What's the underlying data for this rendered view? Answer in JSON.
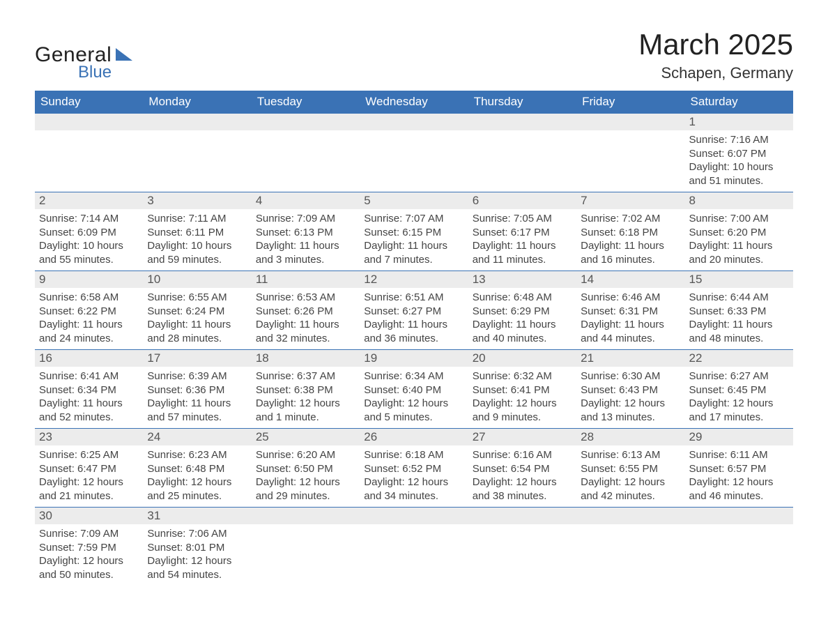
{
  "logo": {
    "word1": "General",
    "word2": "Blue"
  },
  "title": "March 2025",
  "location": "Schapen, Germany",
  "colors": {
    "header_bg": "#3a72b5",
    "header_text": "#ffffff",
    "daynum_bg": "#ececec",
    "row_border": "#3a72b5",
    "text": "#333333",
    "logo_accent": "#3a72b5"
  },
  "fonts": {
    "title_size_pt": 32,
    "location_size_pt": 17,
    "header_size_pt": 13,
    "body_size_pt": 11
  },
  "weekdays": [
    "Sunday",
    "Monday",
    "Tuesday",
    "Wednesday",
    "Thursday",
    "Friday",
    "Saturday"
  ],
  "labels": {
    "sunrise": "Sunrise:",
    "sunset": "Sunset:",
    "daylight": "Daylight:"
  },
  "weeks": [
    [
      null,
      null,
      null,
      null,
      null,
      null,
      {
        "n": "1",
        "sunrise": "7:16 AM",
        "sunset": "6:07 PM",
        "daylight": "10 hours and 51 minutes."
      }
    ],
    [
      {
        "n": "2",
        "sunrise": "7:14 AM",
        "sunset": "6:09 PM",
        "daylight": "10 hours and 55 minutes."
      },
      {
        "n": "3",
        "sunrise": "7:11 AM",
        "sunset": "6:11 PM",
        "daylight": "10 hours and 59 minutes."
      },
      {
        "n": "4",
        "sunrise": "7:09 AM",
        "sunset": "6:13 PM",
        "daylight": "11 hours and 3 minutes."
      },
      {
        "n": "5",
        "sunrise": "7:07 AM",
        "sunset": "6:15 PM",
        "daylight": "11 hours and 7 minutes."
      },
      {
        "n": "6",
        "sunrise": "7:05 AM",
        "sunset": "6:17 PM",
        "daylight": "11 hours and 11 minutes."
      },
      {
        "n": "7",
        "sunrise": "7:02 AM",
        "sunset": "6:18 PM",
        "daylight": "11 hours and 16 minutes."
      },
      {
        "n": "8",
        "sunrise": "7:00 AM",
        "sunset": "6:20 PM",
        "daylight": "11 hours and 20 minutes."
      }
    ],
    [
      {
        "n": "9",
        "sunrise": "6:58 AM",
        "sunset": "6:22 PM",
        "daylight": "11 hours and 24 minutes."
      },
      {
        "n": "10",
        "sunrise": "6:55 AM",
        "sunset": "6:24 PM",
        "daylight": "11 hours and 28 minutes."
      },
      {
        "n": "11",
        "sunrise": "6:53 AM",
        "sunset": "6:26 PM",
        "daylight": "11 hours and 32 minutes."
      },
      {
        "n": "12",
        "sunrise": "6:51 AM",
        "sunset": "6:27 PM",
        "daylight": "11 hours and 36 minutes."
      },
      {
        "n": "13",
        "sunrise": "6:48 AM",
        "sunset": "6:29 PM",
        "daylight": "11 hours and 40 minutes."
      },
      {
        "n": "14",
        "sunrise": "6:46 AM",
        "sunset": "6:31 PM",
        "daylight": "11 hours and 44 minutes."
      },
      {
        "n": "15",
        "sunrise": "6:44 AM",
        "sunset": "6:33 PM",
        "daylight": "11 hours and 48 minutes."
      }
    ],
    [
      {
        "n": "16",
        "sunrise": "6:41 AM",
        "sunset": "6:34 PM",
        "daylight": "11 hours and 52 minutes."
      },
      {
        "n": "17",
        "sunrise": "6:39 AM",
        "sunset": "6:36 PM",
        "daylight": "11 hours and 57 minutes."
      },
      {
        "n": "18",
        "sunrise": "6:37 AM",
        "sunset": "6:38 PM",
        "daylight": "12 hours and 1 minute."
      },
      {
        "n": "19",
        "sunrise": "6:34 AM",
        "sunset": "6:40 PM",
        "daylight": "12 hours and 5 minutes."
      },
      {
        "n": "20",
        "sunrise": "6:32 AM",
        "sunset": "6:41 PM",
        "daylight": "12 hours and 9 minutes."
      },
      {
        "n": "21",
        "sunrise": "6:30 AM",
        "sunset": "6:43 PM",
        "daylight": "12 hours and 13 minutes."
      },
      {
        "n": "22",
        "sunrise": "6:27 AM",
        "sunset": "6:45 PM",
        "daylight": "12 hours and 17 minutes."
      }
    ],
    [
      {
        "n": "23",
        "sunrise": "6:25 AM",
        "sunset": "6:47 PM",
        "daylight": "12 hours and 21 minutes."
      },
      {
        "n": "24",
        "sunrise": "6:23 AM",
        "sunset": "6:48 PM",
        "daylight": "12 hours and 25 minutes."
      },
      {
        "n": "25",
        "sunrise": "6:20 AM",
        "sunset": "6:50 PM",
        "daylight": "12 hours and 29 minutes."
      },
      {
        "n": "26",
        "sunrise": "6:18 AM",
        "sunset": "6:52 PM",
        "daylight": "12 hours and 34 minutes."
      },
      {
        "n": "27",
        "sunrise": "6:16 AM",
        "sunset": "6:54 PM",
        "daylight": "12 hours and 38 minutes."
      },
      {
        "n": "28",
        "sunrise": "6:13 AM",
        "sunset": "6:55 PM",
        "daylight": "12 hours and 42 minutes."
      },
      {
        "n": "29",
        "sunrise": "6:11 AM",
        "sunset": "6:57 PM",
        "daylight": "12 hours and 46 minutes."
      }
    ],
    [
      {
        "n": "30",
        "sunrise": "7:09 AM",
        "sunset": "7:59 PM",
        "daylight": "12 hours and 50 minutes."
      },
      {
        "n": "31",
        "sunrise": "7:06 AM",
        "sunset": "8:01 PM",
        "daylight": "12 hours and 54 minutes."
      },
      null,
      null,
      null,
      null,
      null
    ]
  ]
}
